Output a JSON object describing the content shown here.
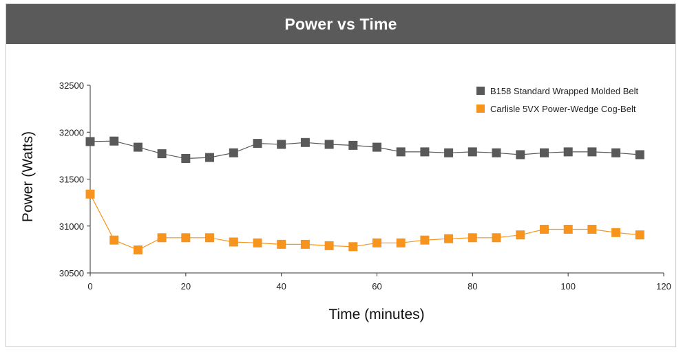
{
  "chart_data": {
    "type": "line",
    "title": "Power vs Time",
    "xlabel": "Time (minutes)",
    "ylabel": "Power (Watts)",
    "xlim": [
      0,
      120
    ],
    "ylim": [
      30500,
      32500
    ],
    "xticks": [
      0,
      20,
      40,
      60,
      80,
      100,
      120
    ],
    "yticks": [
      30500,
      31000,
      31500,
      32000,
      32500
    ],
    "x": [
      0,
      5,
      10,
      15,
      20,
      25,
      30,
      35,
      40,
      45,
      50,
      55,
      60,
      65,
      70,
      75,
      80,
      85,
      90,
      95,
      100,
      105,
      110,
      115
    ],
    "legend_position": "top-right",
    "grid": false,
    "series": [
      {
        "name": "B158 Standard Wrapped Molded Belt",
        "color": "#595959",
        "values": [
          31900,
          31905,
          31840,
          31770,
          31720,
          31730,
          31780,
          31880,
          31870,
          31890,
          31870,
          31860,
          31840,
          31790,
          31790,
          31780,
          31790,
          31780,
          31760,
          31780,
          31790,
          31790,
          31780,
          31760
        ]
      },
      {
        "name": "Carlisle 5VX Power-Wedge Cog-Belt",
        "color": "#f7941d",
        "values": [
          31340,
          30850,
          30745,
          30875,
          30875,
          30875,
          30830,
          30820,
          30805,
          30805,
          30790,
          30780,
          30820,
          30820,
          30850,
          30865,
          30875,
          30875,
          30905,
          30965,
          30965,
          30965,
          30930,
          30905
        ]
      }
    ]
  }
}
